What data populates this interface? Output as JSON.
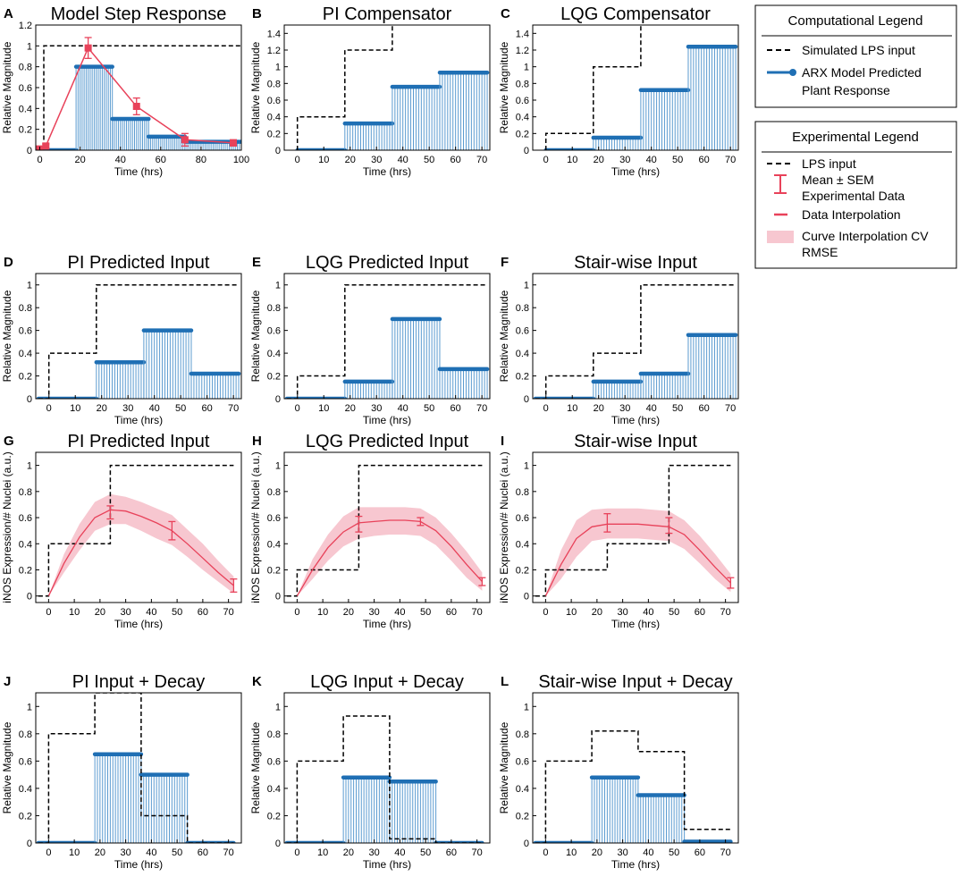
{
  "colors": {
    "stem": "#1f6fb4",
    "stem_light": "#5b9bd0",
    "exp": "#e8425a",
    "band": "#f7c7d0",
    "input": "#000000"
  },
  "legend": {
    "computational": {
      "title": "Computational Legend",
      "items": [
        "Simulated LPS input",
        "ARX Model Predicted",
        "Plant Response"
      ]
    },
    "experimental": {
      "title": "Experimental Legend",
      "items": [
        "LPS input",
        "Mean ± SEM",
        "Experimental Data",
        "Data Interpolation",
        "Curve Interpolation CV",
        "RMSE"
      ]
    }
  },
  "chart_data": [
    {
      "id": "A",
      "type": "stem",
      "title": "Model Step Response",
      "xlabel": "Time (hrs)",
      "ylabel": "Relative Magnitude",
      "xlim": [
        -2,
        100
      ],
      "ylim": [
        0,
        1.2
      ],
      "xticks": [
        0,
        20,
        40,
        60,
        80,
        100
      ],
      "yticks": [
        0,
        0.2,
        0.4,
        0.6,
        0.8,
        1,
        1.2
      ],
      "input": [
        [
          0,
          0
        ],
        [
          2,
          0
        ],
        [
          2,
          1
        ],
        [
          100,
          1
        ]
      ],
      "stem_segments": [
        [
          0,
          18,
          0
        ],
        [
          18,
          36,
          0.8
        ],
        [
          36,
          54,
          0.3
        ],
        [
          54,
          72,
          0.13
        ],
        [
          72,
          100,
          0.08
        ]
      ],
      "exp_points": [
        {
          "t": 0,
          "v": 0.01,
          "sem": 0.03
        },
        {
          "t": 3,
          "v": 0.04,
          "sem": 0.02
        },
        {
          "t": 24,
          "v": 0.98,
          "sem": 0.1
        },
        {
          "t": 48,
          "v": 0.42,
          "sem": 0.08
        },
        {
          "t": 72,
          "v": 0.1,
          "sem": 0.06
        },
        {
          "t": 96,
          "v": 0.07,
          "sem": 0.03
        }
      ]
    },
    {
      "id": "B",
      "type": "stem",
      "title": "PI Compensator",
      "xlabel": "Time (hrs)",
      "ylabel": "Relative Magnitude",
      "xlim": [
        -5,
        73
      ],
      "ylim": [
        0,
        1.5
      ],
      "xticks": [
        0,
        10,
        20,
        30,
        40,
        50,
        60,
        70
      ],
      "yticks": [
        0,
        0.2,
        0.4,
        0.6,
        0.8,
        1,
        1.2,
        1.4
      ],
      "input": [
        [
          0,
          0
        ],
        [
          0,
          0.4
        ],
        [
          18,
          0.4
        ],
        [
          18,
          1.2
        ],
        [
          36,
          1.2
        ],
        [
          36,
          1.5
        ]
      ],
      "stem_segments": [
        [
          0,
          18,
          0
        ],
        [
          18,
          36,
          0.32
        ],
        [
          36,
          54,
          0.76
        ],
        [
          54,
          72,
          0.93
        ]
      ]
    },
    {
      "id": "C",
      "type": "stem",
      "title": "LQG Compensator",
      "xlabel": "Time (hrs)",
      "ylabel": "Relative Magnitude",
      "xlim": [
        -5,
        73
      ],
      "ylim": [
        0,
        1.5
      ],
      "xticks": [
        0,
        10,
        20,
        30,
        40,
        50,
        60,
        70
      ],
      "yticks": [
        0,
        0.2,
        0.4,
        0.6,
        0.8,
        1,
        1.2,
        1.4
      ],
      "input": [
        [
          0,
          0
        ],
        [
          0,
          0.2
        ],
        [
          18,
          0.2
        ],
        [
          18,
          1.0
        ],
        [
          36,
          1.0
        ],
        [
          36,
          1.5
        ]
      ],
      "stem_segments": [
        [
          0,
          18,
          0
        ],
        [
          18,
          36,
          0.15
        ],
        [
          36,
          54,
          0.72
        ],
        [
          54,
          72,
          1.24
        ]
      ]
    },
    {
      "id": "D",
      "type": "stem",
      "title": "PI Predicted Input",
      "xlabel": "Time (hrs)",
      "ylabel": "Relative Magnitude",
      "xlim": [
        -5,
        73
      ],
      "ylim": [
        0,
        1.1
      ],
      "xticks": [
        0,
        10,
        20,
        30,
        40,
        50,
        60,
        70
      ],
      "yticks": [
        0,
        0.2,
        0.4,
        0.6,
        0.8,
        1
      ],
      "input": [
        [
          -4,
          0
        ],
        [
          0,
          0
        ],
        [
          0,
          0.4
        ],
        [
          18,
          0.4
        ],
        [
          18,
          1
        ],
        [
          72,
          1
        ]
      ],
      "stem_segments": [
        [
          -4,
          18,
          0
        ],
        [
          18,
          36,
          0.32
        ],
        [
          36,
          54,
          0.6
        ],
        [
          54,
          72,
          0.22
        ]
      ]
    },
    {
      "id": "E",
      "type": "stem",
      "title": "LQG Predicted Input",
      "xlabel": "Time (hrs)",
      "ylabel": "Relative Magnitude",
      "xlim": [
        -5,
        73
      ],
      "ylim": [
        0,
        1.1
      ],
      "xticks": [
        0,
        10,
        20,
        30,
        40,
        50,
        60,
        70
      ],
      "yticks": [
        0,
        0.2,
        0.4,
        0.6,
        0.8,
        1
      ],
      "input": [
        [
          -4,
          0
        ],
        [
          0,
          0
        ],
        [
          0,
          0.2
        ],
        [
          18,
          0.2
        ],
        [
          18,
          1
        ],
        [
          72,
          1
        ]
      ],
      "stem_segments": [
        [
          -4,
          18,
          0
        ],
        [
          18,
          36,
          0.15
        ],
        [
          36,
          54,
          0.7
        ],
        [
          54,
          72,
          0.26
        ]
      ]
    },
    {
      "id": "F",
      "type": "stem",
      "title": "Stair-wise Input",
      "xlabel": "Time (hrs)",
      "ylabel": "Relative Magnitude",
      "xlim": [
        -5,
        73
      ],
      "ylim": [
        0,
        1.1
      ],
      "xticks": [
        0,
        10,
        20,
        30,
        40,
        50,
        60,
        70
      ],
      "yticks": [
        0,
        0.2,
        0.4,
        0.6,
        0.8,
        1
      ],
      "input": [
        [
          -4,
          0
        ],
        [
          0,
          0
        ],
        [
          0,
          0.2
        ],
        [
          18,
          0.2
        ],
        [
          18,
          0.4
        ],
        [
          36,
          0.4
        ],
        [
          36,
          1
        ],
        [
          72,
          1
        ]
      ],
      "stem_segments": [
        [
          -4,
          18,
          0
        ],
        [
          18,
          36,
          0.15
        ],
        [
          36,
          54,
          0.22
        ],
        [
          54,
          72,
          0.56
        ]
      ]
    },
    {
      "id": "G",
      "type": "line",
      "title": "PI Predicted Input",
      "xlabel": "Time (hrs)",
      "ylabel": "iNOS Expression/# Nuclei (a.u.)",
      "xlim": [
        -5,
        75
      ],
      "ylim": [
        -0.05,
        1.1
      ],
      "xticks": [
        0,
        10,
        20,
        30,
        40,
        50,
        60,
        70
      ],
      "yticks": [
        0,
        0.2,
        0.4,
        0.6,
        0.8,
        1
      ],
      "input": [
        [
          -4,
          0
        ],
        [
          0,
          0
        ],
        [
          0,
          0.4
        ],
        [
          24,
          0.4
        ],
        [
          24,
          1
        ],
        [
          72,
          1
        ]
      ],
      "curve": [
        [
          0,
          0
        ],
        [
          6,
          0.25
        ],
        [
          12,
          0.45
        ],
        [
          18,
          0.6
        ],
        [
          24,
          0.66
        ],
        [
          30,
          0.65
        ],
        [
          36,
          0.61
        ],
        [
          42,
          0.56
        ],
        [
          48,
          0.5
        ],
        [
          54,
          0.4
        ],
        [
          60,
          0.29
        ],
        [
          66,
          0.18
        ],
        [
          72,
          0.08
        ]
      ],
      "band": [
        [
          0,
          0,
          0
        ],
        [
          6,
          0.18,
          0.32
        ],
        [
          12,
          0.35,
          0.55
        ],
        [
          18,
          0.5,
          0.72
        ],
        [
          24,
          0.55,
          0.78
        ],
        [
          30,
          0.55,
          0.76
        ],
        [
          36,
          0.5,
          0.72
        ],
        [
          42,
          0.44,
          0.67
        ],
        [
          48,
          0.39,
          0.62
        ],
        [
          54,
          0.3,
          0.51
        ],
        [
          60,
          0.2,
          0.4
        ],
        [
          66,
          0.11,
          0.27
        ],
        [
          72,
          0.02,
          0.15
        ]
      ],
      "exp_points": [
        {
          "t": 0,
          "v": 0,
          "sem": 0.0
        },
        {
          "t": 24,
          "v": 0.64,
          "sem": 0.05
        },
        {
          "t": 48,
          "v": 0.5,
          "sem": 0.07
        },
        {
          "t": 72,
          "v": 0.08,
          "sem": 0.05
        }
      ]
    },
    {
      "id": "H",
      "type": "line",
      "title": "LQG Predicted Input",
      "xlabel": "Time (hrs)",
      "ylabel": "iNOS Expression/# Nuclei (a.u.)",
      "xlim": [
        -5,
        75
      ],
      "ylim": [
        -0.05,
        1.1
      ],
      "xticks": [
        0,
        10,
        20,
        30,
        40,
        50,
        60,
        70
      ],
      "yticks": [
        0,
        0.2,
        0.4,
        0.6,
        0.8,
        1
      ],
      "input": [
        [
          -4,
          0
        ],
        [
          0,
          0
        ],
        [
          0,
          0.2
        ],
        [
          24,
          0.2
        ],
        [
          24,
          1
        ],
        [
          72,
          1
        ]
      ],
      "curve": [
        [
          0,
          0
        ],
        [
          6,
          0.2
        ],
        [
          12,
          0.37
        ],
        [
          18,
          0.49
        ],
        [
          24,
          0.56
        ],
        [
          30,
          0.57
        ],
        [
          36,
          0.58
        ],
        [
          42,
          0.58
        ],
        [
          48,
          0.57
        ],
        [
          54,
          0.5
        ],
        [
          60,
          0.38
        ],
        [
          66,
          0.24
        ],
        [
          72,
          0.11
        ]
      ],
      "band": [
        [
          0,
          0,
          0
        ],
        [
          6,
          0.13,
          0.28
        ],
        [
          12,
          0.27,
          0.47
        ],
        [
          18,
          0.38,
          0.61
        ],
        [
          24,
          0.44,
          0.68
        ],
        [
          30,
          0.46,
          0.68
        ],
        [
          36,
          0.47,
          0.68
        ],
        [
          42,
          0.47,
          0.68
        ],
        [
          48,
          0.46,
          0.67
        ],
        [
          54,
          0.39,
          0.6
        ],
        [
          60,
          0.27,
          0.48
        ],
        [
          66,
          0.14,
          0.34
        ],
        [
          72,
          0.04,
          0.18
        ]
      ],
      "exp_points": [
        {
          "t": 0,
          "v": 0,
          "sem": 0.0
        },
        {
          "t": 24,
          "v": 0.55,
          "sem": 0.06
        },
        {
          "t": 48,
          "v": 0.57,
          "sem": 0.03
        },
        {
          "t": 72,
          "v": 0.11,
          "sem": 0.03
        }
      ]
    },
    {
      "id": "I",
      "type": "line",
      "title": "Stair-wise Input",
      "xlabel": "Time (hrs)",
      "ylabel": "iNOS Expression/# Nuclei (a.u.)",
      "xlim": [
        -5,
        75
      ],
      "ylim": [
        -0.05,
        1.1
      ],
      "xticks": [
        0,
        10,
        20,
        30,
        40,
        50,
        60,
        70
      ],
      "yticks": [
        0,
        0.2,
        0.4,
        0.6,
        0.8,
        1
      ],
      "input": [
        [
          -4,
          0
        ],
        [
          0,
          0
        ],
        [
          0,
          0.2
        ],
        [
          12,
          0.2
        ],
        [
          12,
          0.2
        ],
        [
          12,
          0.2
        ],
        [
          24,
          0.2
        ],
        [
          24,
          0.4
        ],
        [
          48,
          0.4
        ],
        [
          48,
          1
        ],
        [
          72,
          1
        ]
      ],
      "curve": [
        [
          0,
          0
        ],
        [
          6,
          0.24
        ],
        [
          12,
          0.44
        ],
        [
          18,
          0.53
        ],
        [
          24,
          0.55
        ],
        [
          30,
          0.55
        ],
        [
          36,
          0.55
        ],
        [
          42,
          0.54
        ],
        [
          48,
          0.53
        ],
        [
          54,
          0.47
        ],
        [
          60,
          0.35
        ],
        [
          66,
          0.22
        ],
        [
          72,
          0.1
        ]
      ],
      "band": [
        [
          0,
          0,
          0
        ],
        [
          6,
          0.13,
          0.35
        ],
        [
          12,
          0.3,
          0.58
        ],
        [
          18,
          0.42,
          0.66
        ],
        [
          24,
          0.44,
          0.67
        ],
        [
          30,
          0.44,
          0.67
        ],
        [
          36,
          0.44,
          0.67
        ],
        [
          42,
          0.43,
          0.66
        ],
        [
          48,
          0.42,
          0.65
        ],
        [
          54,
          0.36,
          0.58
        ],
        [
          60,
          0.25,
          0.46
        ],
        [
          66,
          0.13,
          0.32
        ],
        [
          72,
          0.03,
          0.17
        ]
      ],
      "exp_points": [
        {
          "t": 0,
          "v": 0,
          "sem": 0.0
        },
        {
          "t": 24,
          "v": 0.56,
          "sem": 0.07
        },
        {
          "t": 48,
          "v": 0.54,
          "sem": 0.06
        },
        {
          "t": 72,
          "v": 0.1,
          "sem": 0.04
        }
      ]
    },
    {
      "id": "J",
      "type": "stem",
      "title": "PI Input + Decay",
      "xlabel": "Time (hrs)",
      "ylabel": "Relative Magnitude",
      "xlim": [
        -5,
        75
      ],
      "ylim": [
        0,
        1.1
      ],
      "xticks": [
        0,
        10,
        20,
        30,
        40,
        50,
        60,
        70
      ],
      "yticks": [
        0,
        0.2,
        0.4,
        0.6,
        0.8,
        1
      ],
      "input": [
        [
          -4,
          0
        ],
        [
          0,
          0
        ],
        [
          0,
          0.8
        ],
        [
          18,
          0.8
        ],
        [
          18,
          1.1
        ],
        [
          36,
          1.1
        ],
        [
          36,
          0.2
        ],
        [
          54,
          0.2
        ],
        [
          54,
          0
        ],
        [
          72,
          0
        ]
      ],
      "stem_segments": [
        [
          -4,
          18,
          0
        ],
        [
          18,
          36,
          0.65
        ],
        [
          36,
          54,
          0.5
        ],
        [
          54,
          72,
          0
        ]
      ]
    },
    {
      "id": "K",
      "type": "stem",
      "title": "LQG Input + Decay",
      "xlabel": "Time (hrs)",
      "ylabel": "Relative Magnitude",
      "xlim": [
        -5,
        75
      ],
      "ylim": [
        0,
        1.1
      ],
      "xticks": [
        0,
        10,
        20,
        30,
        40,
        50,
        60,
        70
      ],
      "yticks": [
        0,
        0.2,
        0.4,
        0.6,
        0.8,
        1
      ],
      "input": [
        [
          -4,
          0
        ],
        [
          0,
          0
        ],
        [
          0,
          0.6
        ],
        [
          18,
          0.6
        ],
        [
          18,
          0.93
        ],
        [
          36,
          0.93
        ],
        [
          36,
          0.03
        ],
        [
          54,
          0.03
        ],
        [
          54,
          0
        ],
        [
          72,
          0
        ]
      ],
      "stem_segments": [
        [
          -4,
          18,
          0
        ],
        [
          18,
          36,
          0.48
        ],
        [
          36,
          54,
          0.45
        ],
        [
          54,
          72,
          0
        ]
      ]
    },
    {
      "id": "L",
      "type": "stem",
      "title": "Stair-wise Input + Decay",
      "xlabel": "Time (hrs)",
      "ylabel": "Relative Magnitude",
      "xlim": [
        -5,
        75
      ],
      "ylim": [
        0,
        1.1
      ],
      "xticks": [
        0,
        10,
        20,
        30,
        40,
        50,
        60,
        70
      ],
      "yticks": [
        0,
        0.2,
        0.4,
        0.6,
        0.8,
        1
      ],
      "input": [
        [
          -4,
          0
        ],
        [
          0,
          0
        ],
        [
          0,
          0.6
        ],
        [
          18,
          0.6
        ],
        [
          18,
          0.82
        ],
        [
          36,
          0.82
        ],
        [
          36,
          0.67
        ],
        [
          54,
          0.67
        ],
        [
          54,
          0.1
        ],
        [
          72,
          0.1
        ]
      ],
      "stem_segments": [
        [
          -4,
          18,
          0
        ],
        [
          18,
          36,
          0.48
        ],
        [
          36,
          54,
          0.35
        ],
        [
          54,
          72,
          0.01
        ]
      ]
    }
  ]
}
